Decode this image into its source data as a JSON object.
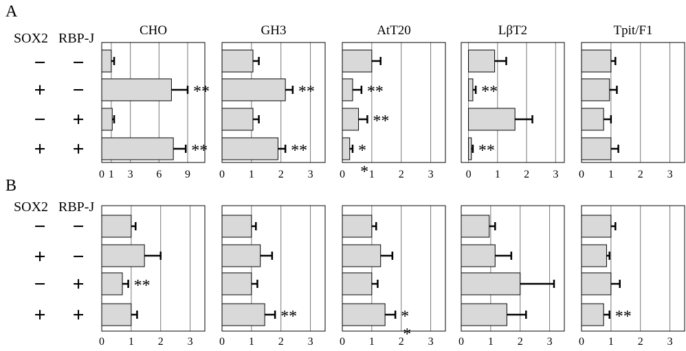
{
  "panels": [
    {
      "label": "A",
      "col_labels": [
        "SOX2",
        "RBP-J"
      ],
      "rows": [
        [
          "−",
          "−"
        ],
        [
          "+",
          "−"
        ],
        [
          "−",
          "+"
        ],
        [
          "+",
          "+"
        ]
      ]
    },
    {
      "label": "B",
      "col_labels": [
        "SOX2",
        "RBP-J"
      ],
      "rows": [
        [
          "−",
          "−"
        ],
        [
          "+",
          "−"
        ],
        [
          "−",
          "+"
        ],
        [
          "+",
          "+"
        ]
      ]
    }
  ],
  "chart_data": [
    {
      "type": "bar",
      "panel": "A",
      "title": "CHO",
      "orientation": "horizontal",
      "categories": [
        "−/−",
        "+/−",
        "−/+",
        "+/+"
      ],
      "values": [
        1,
        7.3,
        1.1,
        7.5
      ],
      "errors": [
        0.3,
        1.7,
        0.2,
        1.3
      ],
      "significance": [
        "",
        "**",
        "",
        "**"
      ],
      "xticks": [
        0,
        1,
        3,
        6,
        9
      ],
      "tick_labels": [
        "0",
        "1",
        "3",
        "6",
        "9"
      ],
      "xlim": [
        0,
        10.8
      ],
      "axis_marks": [],
      "grid": true,
      "bar_color": "#d9d9d9"
    },
    {
      "type": "bar",
      "panel": "A",
      "title": "GH3",
      "orientation": "horizontal",
      "categories": [
        "−/−",
        "+/−",
        "−/+",
        "+/+"
      ],
      "values": [
        1.05,
        2.15,
        1.05,
        1.9
      ],
      "errors": [
        0.2,
        0.25,
        0.2,
        0.25
      ],
      "significance": [
        "",
        "**",
        "",
        "**"
      ],
      "xticks": [
        0,
        1,
        2,
        3
      ],
      "tick_labels": [
        "0",
        "1",
        "2",
        "3"
      ],
      "xlim": [
        0,
        3.5
      ],
      "axis_marks": [],
      "grid": true,
      "bar_color": "#d9d9d9"
    },
    {
      "type": "bar",
      "panel": "A",
      "title": "AtT20",
      "orientation": "horizontal",
      "categories": [
        "−/−",
        "+/−",
        "−/+",
        "+/+"
      ],
      "values": [
        1.0,
        0.35,
        0.55,
        0.25
      ],
      "errors": [
        0.3,
        0.3,
        0.3,
        0.1
      ],
      "significance": [
        "",
        "**",
        "**",
        "*"
      ],
      "xticks": [
        0,
        1,
        2,
        3
      ],
      "tick_labels": [
        "0",
        "1",
        "2",
        "3"
      ],
      "xlim": [
        0,
        3.5
      ],
      "axis_marks": [
        {
          "x": 0.75,
          "text": "*"
        }
      ],
      "grid": true,
      "bar_color": "#d9d9d9"
    },
    {
      "type": "bar",
      "panel": "A",
      "title": "LβT2",
      "orientation": "horizontal",
      "categories": [
        "−/−",
        "+/−",
        "−/+",
        "+/+"
      ],
      "values": [
        0.9,
        0.15,
        1.6,
        0.1
      ],
      "errors": [
        0.4,
        0.1,
        0.6,
        0.05
      ],
      "significance": [
        "",
        "**",
        "",
        "**"
      ],
      "xticks": [
        0,
        1,
        2,
        3
      ],
      "tick_labels": [
        "0",
        "1",
        "2",
        "3"
      ],
      "xlim": [
        -0.25,
        3.3
      ],
      "axis_marks": [],
      "grid": true,
      "bar_color": "#d9d9d9"
    },
    {
      "type": "bar",
      "panel": "A",
      "title": "Tpit/F1",
      "orientation": "horizontal",
      "categories": [
        "−/−",
        "+/−",
        "−/+",
        "+/+"
      ],
      "values": [
        1.0,
        0.95,
        0.75,
        1.0
      ],
      "errors": [
        0.15,
        0.25,
        0.25,
        0.25
      ],
      "significance": [
        "",
        "",
        "",
        ""
      ],
      "xticks": [
        0,
        1,
        2,
        3
      ],
      "tick_labels": [
        "0",
        "1",
        "2",
        "3"
      ],
      "xlim": [
        0,
        3.5
      ],
      "axis_marks": [],
      "grid": true,
      "bar_color": "#d9d9d9"
    },
    {
      "type": "bar",
      "panel": "B",
      "title": "",
      "orientation": "horizontal",
      "categories": [
        "−/−",
        "+/−",
        "−/+",
        "+/+"
      ],
      "values": [
        1.0,
        1.45,
        0.7,
        1.0
      ],
      "errors": [
        0.15,
        0.55,
        0.2,
        0.2
      ],
      "significance": [
        "",
        "",
        "**",
        ""
      ],
      "xticks": [
        0,
        1,
        2,
        3
      ],
      "tick_labels": [
        "0",
        "1",
        "2",
        "3"
      ],
      "xlim": [
        0,
        3.5
      ],
      "axis_marks": [],
      "grid": true,
      "bar_color": "#d9d9d9"
    },
    {
      "type": "bar",
      "panel": "B",
      "title": "",
      "orientation": "horizontal",
      "categories": [
        "−/−",
        "+/−",
        "−/+",
        "+/+"
      ],
      "values": [
        1.0,
        1.3,
        1.0,
        1.45
      ],
      "errors": [
        0.15,
        0.4,
        0.2,
        0.35
      ],
      "significance": [
        "",
        "",
        "",
        "**"
      ],
      "xticks": [
        0,
        1,
        2,
        3
      ],
      "tick_labels": [
        "0",
        "1",
        "2",
        "3"
      ],
      "xlim": [
        0,
        3.5
      ],
      "axis_marks": [],
      "grid": true,
      "bar_color": "#d9d9d9"
    },
    {
      "type": "bar",
      "panel": "B",
      "title": "",
      "orientation": "horizontal",
      "categories": [
        "−/−",
        "+/−",
        "−/+",
        "+/+"
      ],
      "values": [
        1.0,
        1.3,
        1.0,
        1.45
      ],
      "errors": [
        0.15,
        0.4,
        0.2,
        0.35
      ],
      "significance": [
        "",
        "",
        "",
        "*"
      ],
      "xticks": [
        0,
        1,
        2,
        3
      ],
      "tick_labels": [
        "0",
        "1",
        "2",
        "3"
      ],
      "xlim": [
        0,
        3.5
      ],
      "axis_marks": [
        {
          "x": 2.2,
          "text": "*"
        }
      ],
      "grid": true,
      "bar_color": "#d9d9d9"
    },
    {
      "type": "bar",
      "panel": "B",
      "title": "",
      "orientation": "horizontal",
      "categories": [
        "−/−",
        "+/−",
        "−/+",
        "+/+"
      ],
      "values": [
        0.95,
        1.15,
        2.0,
        1.55
      ],
      "errors": [
        0.2,
        0.55,
        1.15,
        0.65
      ],
      "significance": [
        "",
        "",
        "",
        ""
      ],
      "xticks": [
        0,
        1,
        2,
        3
      ],
      "tick_labels": [
        "0",
        "1",
        "2",
        "3"
      ],
      "xlim": [
        0,
        3.5
      ],
      "axis_marks": [],
      "grid": true,
      "bar_color": "#d9d9d9"
    },
    {
      "type": "bar",
      "panel": "B",
      "title": "",
      "orientation": "horizontal",
      "categories": [
        "−/−",
        "+/−",
        "−/+",
        "+/+"
      ],
      "values": [
        1.0,
        0.85,
        1.0,
        0.75
      ],
      "errors": [
        0.15,
        0.1,
        0.3,
        0.2
      ],
      "significance": [
        "",
        "",
        "",
        "**"
      ],
      "xticks": [
        0,
        1,
        2,
        3
      ],
      "tick_labels": [
        "0",
        "1",
        "2",
        "3"
      ],
      "xlim": [
        0,
        3.5
      ],
      "axis_marks": [],
      "grid": true,
      "bar_color": "#d9d9d9"
    }
  ]
}
